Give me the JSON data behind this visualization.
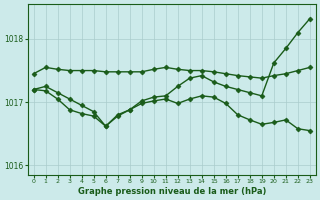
{
  "title": "Graphe pression niveau de la mer (hPa)",
  "bg_color": "#cceaea",
  "grid_color": "#aacccc",
  "line_color": "#1a5c1a",
  "marker": "D",
  "marker_size": 2.5,
  "linewidth": 1.0,
  "xlim": [
    -0.5,
    23.5
  ],
  "ylim": [
    1015.85,
    1018.55
  ],
  "yticks": [
    1016,
    1017,
    1018
  ],
  "xticks": [
    0,
    1,
    2,
    3,
    4,
    5,
    6,
    7,
    8,
    9,
    10,
    11,
    12,
    13,
    14,
    15,
    16,
    17,
    18,
    19,
    20,
    21,
    22,
    23
  ],
  "series": [
    [
      1017.45,
      1017.55,
      1017.52,
      1017.5,
      1017.5,
      1017.5,
      1017.48,
      1017.48,
      1017.48,
      1017.48,
      1017.52,
      1017.55,
      1017.52,
      1017.5,
      1017.5,
      1017.48,
      1017.45,
      1017.42,
      1017.4,
      1017.38,
      1017.42,
      1017.45,
      1017.5,
      1017.55
    ],
    [
      1017.2,
      1017.25,
      1017.15,
      1017.05,
      1016.95,
      1016.85,
      1016.62,
      1016.78,
      1016.88,
      1017.02,
      1017.08,
      1017.1,
      1017.25,
      1017.38,
      1017.42,
      1017.32,
      1017.25,
      1017.2,
      1017.15,
      1017.1,
      1017.62,
      1017.85,
      1018.1,
      1018.32
    ],
    [
      1017.2,
      1017.18,
      1017.05,
      1016.88,
      1016.82,
      1016.78,
      1016.62,
      1016.8,
      1016.88,
      1016.98,
      1017.02,
      1017.05,
      1016.98,
      1017.05,
      1017.1,
      1017.08,
      1016.98,
      1016.8,
      1016.72,
      1016.65,
      1016.68,
      1016.72,
      1016.58,
      1016.55
    ]
  ]
}
